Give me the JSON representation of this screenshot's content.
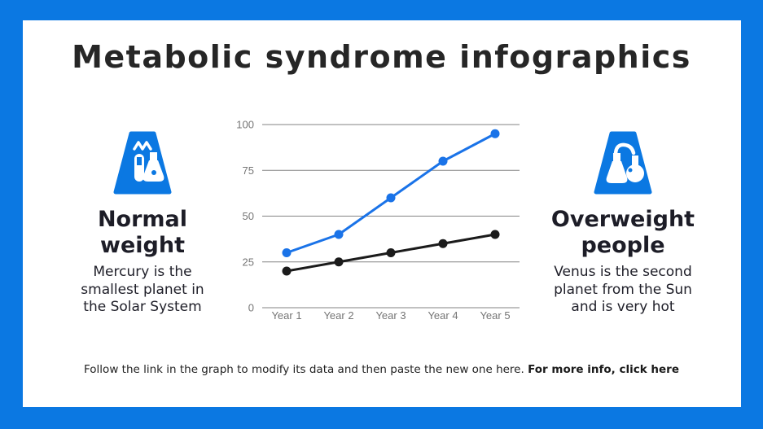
{
  "page": {
    "border_color": "#0b78e2",
    "panel_color": "#ffffff",
    "accent_blue": "#0b78e2"
  },
  "title": "Metabolic syndrome infographics",
  "features": {
    "left": {
      "icon": "test-tube-and-flask-icon",
      "heading": "Normal weight",
      "description": "Mercury is the smallest planet in the Solar System"
    },
    "right": {
      "icon": "distillation-flasks-icon",
      "heading": "Overweight people",
      "description": "Venus is the second planet from the Sun and is very hot"
    }
  },
  "footer": {
    "text": "Follow the link in the graph to modify its data and then paste the new one here. ",
    "link_text": "For more info, click here"
  },
  "chart_data": {
    "type": "line",
    "title": "",
    "x": [
      "Year 1",
      "Year 2",
      "Year 3",
      "Year 4",
      "Year 5"
    ],
    "series": [
      {
        "color": "#1a73e8",
        "values": [
          30,
          40,
          60,
          80,
          95
        ]
      },
      {
        "color": "#1b1b1b",
        "values": [
          20,
          25,
          30,
          35,
          40
        ]
      }
    ],
    "yticks": [
      0,
      25,
      50,
      75,
      100
    ],
    "ylim": [
      0,
      100
    ],
    "grid": true,
    "legend": "none",
    "gridline_color": "#838383",
    "tick_label_color": "#757575"
  }
}
